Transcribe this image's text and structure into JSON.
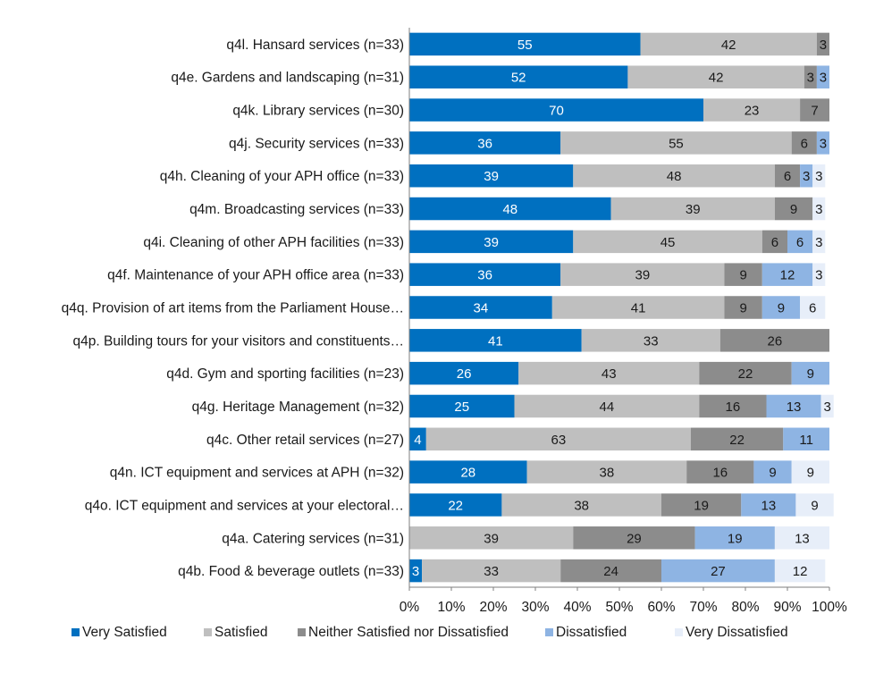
{
  "chart_data": {
    "type": "bar",
    "orientation": "horizontal",
    "stacked": true,
    "categories": [
      "q4l. Hansard services (n=33)",
      "q4e. Gardens and landscaping (n=31)",
      "q4k. Library services (n=30)",
      "q4j. Security services (n=33)",
      "q4h. Cleaning of your APH office (n=33)",
      "q4m. Broadcasting services (n=33)",
      "q4i. Cleaning of other APH facilities (n=33)",
      "q4f. Maintenance of your APH office area (n=33)",
      "q4q. Provision of art items from the Parliament House…",
      "q4p. Building tours for your visitors and constituents…",
      "q4d. Gym and sporting facilities (n=23)",
      "q4g. Heritage Management (n=32)",
      "q4c. Other retail services (n=27)",
      "q4n. ICT equipment and services at APH (n=32)",
      "q4o. ICT equipment and services at your electoral…",
      "q4a. Catering services (n=31)",
      "q4b. Food & beverage outlets (n=33)"
    ],
    "series": [
      {
        "name": "Very Satisfied",
        "color": "#0070c0",
        "label_color": "#ffffff",
        "values": [
          55,
          52,
          70,
          36,
          39,
          48,
          39,
          36,
          34,
          41,
          26,
          25,
          4,
          28,
          22,
          0,
          3
        ]
      },
      {
        "name": "Satisfied",
        "color": "#bfbfbf",
        "label_color": "#1a1a1a",
        "values": [
          42,
          42,
          23,
          55,
          48,
          39,
          45,
          39,
          41,
          33,
          43,
          44,
          63,
          38,
          38,
          39,
          33
        ]
      },
      {
        "name": "Neither Satisfied nor Dissatisfied",
        "color": "#8c8c8c",
        "label_color": "#1a1a1a",
        "values": [
          3,
          3,
          7,
          6,
          6,
          9,
          6,
          9,
          9,
          26,
          22,
          16,
          22,
          16,
          19,
          29,
          24
        ]
      },
      {
        "name": "Dissatisfied",
        "color": "#8eb4e3",
        "label_color": "#1a1a1a",
        "values": [
          0,
          3,
          0,
          3,
          3,
          0,
          6,
          12,
          9,
          0,
          9,
          13,
          11,
          9,
          13,
          19,
          27
        ]
      },
      {
        "name": "Very Dissatisfied",
        "color": "#e7eef9",
        "label_color": "#1a1a1a",
        "values": [
          0,
          0,
          0,
          0,
          3,
          3,
          3,
          3,
          6,
          0,
          0,
          3,
          0,
          9,
          9,
          13,
          12
        ]
      }
    ],
    "x_axis": {
      "ticks": [
        "0%",
        "10%",
        "20%",
        "30%",
        "40%",
        "50%",
        "60%",
        "70%",
        "80%",
        "90%",
        "100%"
      ],
      "range": [
        0,
        100
      ]
    },
    "grid": false,
    "legend_position": "bottom"
  }
}
